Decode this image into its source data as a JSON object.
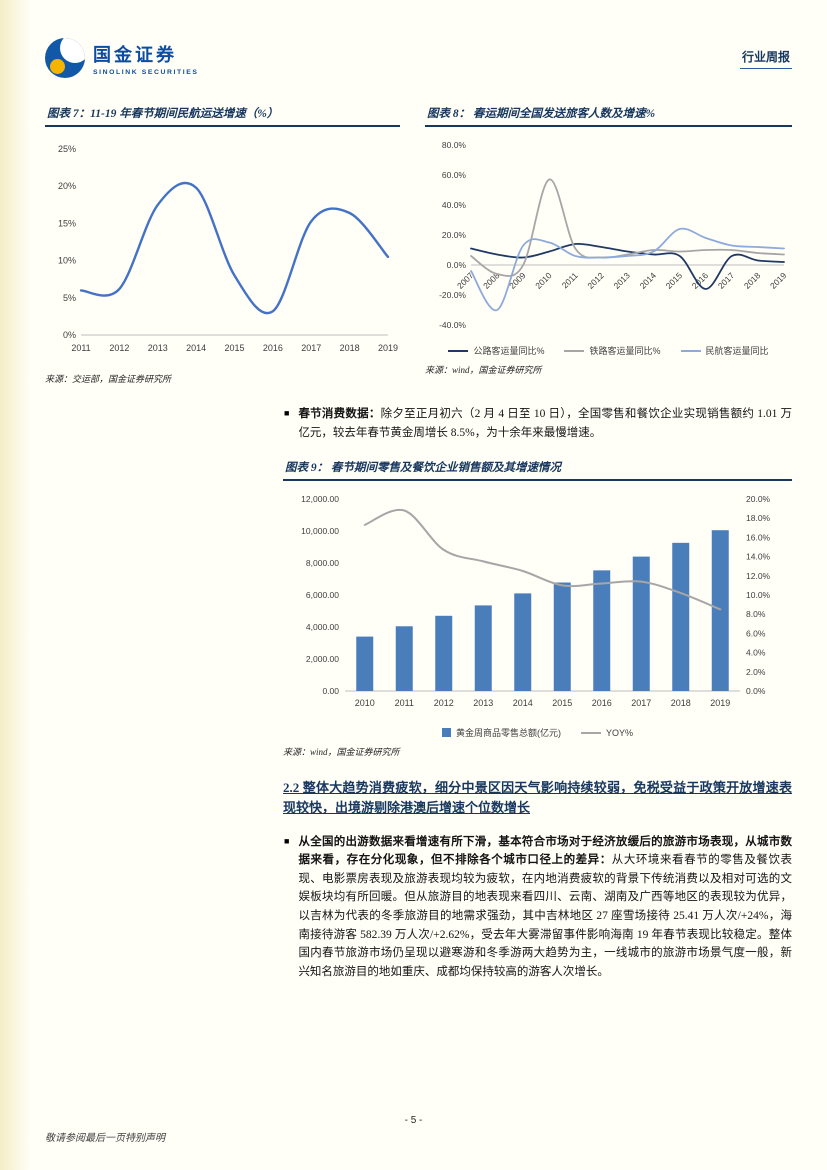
{
  "header": {
    "brand_cn": "国金证券",
    "brand_en": "SINOLINK SECURITIES",
    "report_type": "行业周报"
  },
  "chart_data": [
    {
      "type": "line",
      "title": "图表 7：11-19 年春节期间民航运送增速（%）",
      "x": [
        "2011",
        "2012",
        "2013",
        "2014",
        "2015",
        "2016",
        "2017",
        "2018",
        "2019"
      ],
      "series": [
        {
          "name": "春节期间民航运送增速",
          "color": "#4472c4",
          "values": [
            6.0,
            6.2,
            17.5,
            19.8,
            8.0,
            3.2,
            15.3,
            16.4,
            10.5
          ]
        }
      ],
      "ylim": [
        0,
        25
      ],
      "yticks": [
        [
          0,
          "0%"
        ],
        [
          5,
          "5%"
        ],
        [
          10,
          "10%"
        ],
        [
          15,
          "15%"
        ],
        [
          20,
          "20%"
        ],
        [
          25,
          "25%"
        ]
      ],
      "grid": false,
      "source": "来源：交运部，国金证券研究所"
    },
    {
      "type": "line",
      "title": "图表 8：  春运期间全国发送旅客人数及增速%",
      "x": [
        "2007",
        "2008",
        "2009",
        "2010",
        "2011",
        "2012",
        "2013",
        "2014",
        "2015",
        "2016",
        "2017",
        "2018",
        "2019"
      ],
      "series": [
        {
          "name": "公路客运量同比%",
          "color": "#1f3864",
          "values": [
            11,
            7,
            5,
            9,
            14,
            12,
            9,
            7,
            6,
            -16,
            6,
            3,
            2
          ]
        },
        {
          "name": "铁路客运量同比%",
          "color": "#a6a6a6",
          "values": [
            6,
            -6,
            0,
            57,
            11,
            5,
            7,
            10,
            9,
            10,
            10,
            8,
            7
          ]
        },
        {
          "name": "民航客运量同比",
          "color": "#8eaadb",
          "values": [
            -4,
            -30,
            13,
            15,
            6,
            5,
            6,
            9,
            24,
            18,
            13,
            12,
            11
          ]
        }
      ],
      "ylim": [
        -40,
        80
      ],
      "yticks": [
        [
          -40,
          "-40.0%"
        ],
        [
          -20,
          "-20.0%"
        ],
        [
          0,
          "0.0%"
        ],
        [
          20,
          "20.0%"
        ],
        [
          40,
          "40.0%"
        ],
        [
          60,
          "60.0%"
        ],
        [
          80,
          "80.0%"
        ]
      ],
      "grid": false,
      "legend_position": "bottom",
      "source": "来源：wind，国金证券研究所"
    },
    {
      "type": "bar",
      "title": "图表 9：  春节期间零售及餐饮企业销售额及其增速情况",
      "x": [
        "2010",
        "2011",
        "2012",
        "2013",
        "2014",
        "2015",
        "2016",
        "2017",
        "2018",
        "2019"
      ],
      "bar": {
        "name": "黄金周商品零售总额(亿元)",
        "color": "#4a7ebb",
        "values": [
          3400,
          4045,
          4700,
          5350,
          6100,
          6780,
          7540,
          8400,
          9260,
          10050
        ],
        "ylim": [
          0,
          12000
        ],
        "yticks": [
          [
            0,
            "0.00"
          ],
          [
            2000,
            "2,000.00"
          ],
          [
            4000,
            "4,000.00"
          ],
          [
            6000,
            "6,000.00"
          ],
          [
            8000,
            "8,000.00"
          ],
          [
            10000,
            "10,000.00"
          ],
          [
            12000,
            "12,000.00"
          ]
        ]
      },
      "line": {
        "name": "YOY%",
        "color": "#a6a6a6",
        "values": [
          17.3,
          18.8,
          14.7,
          13.5,
          12.5,
          11.0,
          11.2,
          11.4,
          10.2,
          8.5
        ],
        "ylim": [
          0,
          20
        ],
        "yticks": [
          [
            0,
            "0.0%"
          ],
          [
            2,
            "2.0%"
          ],
          [
            4,
            "4.0%"
          ],
          [
            6,
            "6.0%"
          ],
          [
            8,
            "8.0%"
          ],
          [
            10,
            "10.0%"
          ],
          [
            12,
            "12.0%"
          ],
          [
            14,
            "14.0%"
          ],
          [
            16,
            "16.0%"
          ],
          [
            18,
            "18.0%"
          ],
          [
            20,
            "20.0%"
          ]
        ]
      },
      "legend_position": "bottom",
      "source": "来源：wind，国金证券研究所"
    }
  ],
  "body": {
    "bullet1": {
      "lead": "春节消费数据：",
      "text": "除夕至正月初六（2 月 4 日至 10 日），全国零售和餐饮企业实现销售额约 1.01 万亿元，较去年春节黄金周增长 8.5%，为十余年来最慢增速。"
    },
    "section_2_2": "2.2 整体大趋势消费疲软，细分中景区因天气影响持续较弱，免税受益于政策开放增速表现较快，出境游剔除港澳后增速个位数增长",
    "bullet2": {
      "lead": "从全国的出游数据来看增速有所下滑，基本符合市场对于经济放缓后的旅游市场表现，从城市数据来看，存在分化现象，但不排除各个城市口径上的差异：",
      "text": "从大环境来看春节的零售及餐饮表现、电影票房表现及旅游表现均较为疲软，在内地消费疲软的背景下传统消费以及相对可选的文娱板块均有所回暖。但从旅游目的地表现来看四川、云南、湖南及广西等地区的表现较为优异，以吉林为代表的冬季旅游目的地需求强劲，其中吉林地区 27 座雪场接待 25.41 万人次/+24%，海南接待游客 582.39 万人次/+2.62%，受去年大雾滞留事件影响海南 19 年春节表现比较稳定。整体国内春节旅游市场仍呈现以避寒游和冬季游两大趋势为主，一线城市的旅游市场景气度一般，新兴知名旅游目的地如重庆、成都均保持较高的游客人次增长。"
    }
  },
  "footer": {
    "disclaimer": "敬请参阅最后一页特别声明",
    "page_number": "- 5 -"
  }
}
